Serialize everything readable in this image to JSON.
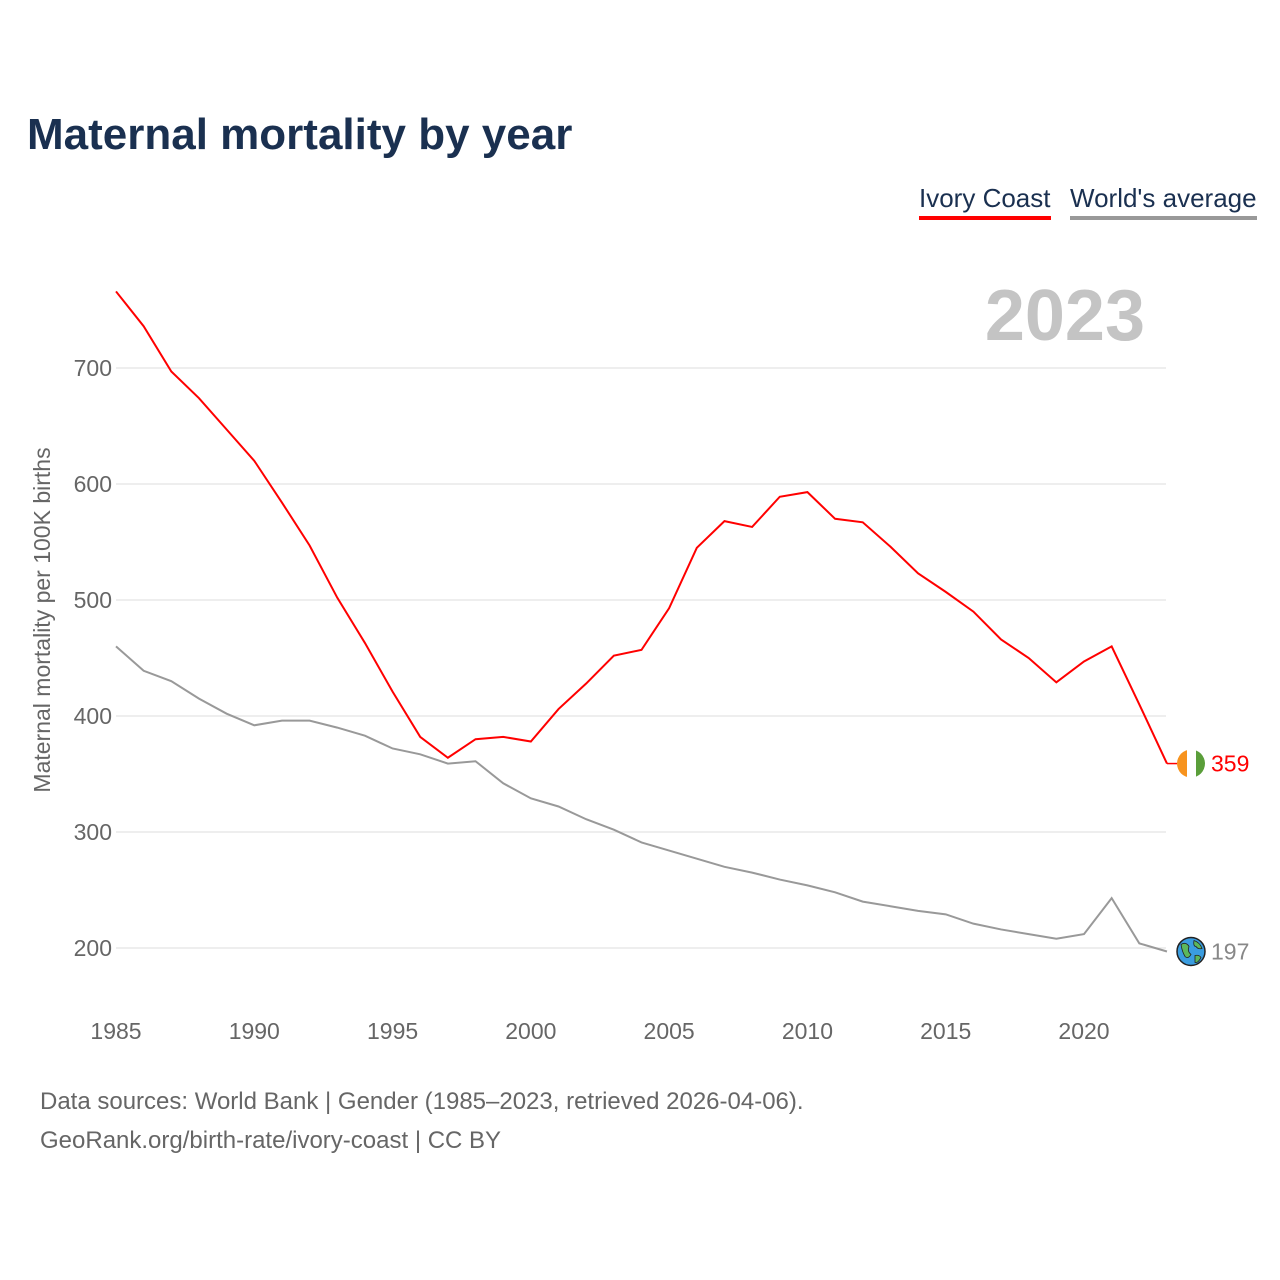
{
  "title": "Maternal mortality by year",
  "legend": {
    "ivory_coast": "Ivory Coast",
    "world": "World's average"
  },
  "year_label": "2023",
  "footer": {
    "line1": "Data sources: World Bank | Gender (1985–2023, retrieved 2026-04-06).",
    "line2": "GeoRank.org/birth-rate/ivory-coast | CC BY"
  },
  "chart_data": {
    "type": "line",
    "title": "Maternal mortality by year",
    "xlabel": "",
    "ylabel": "Maternal mortality per 100K births",
    "xlim": [
      1985,
      2023
    ],
    "ylim": [
      150,
      780
    ],
    "xticks": [
      1985,
      1990,
      1995,
      2000,
      2005,
      2010,
      2015,
      2020
    ],
    "yticks": [
      200,
      300,
      400,
      500,
      600,
      700
    ],
    "grid": true,
    "legend_position": "top-right",
    "x": [
      1985,
      1986,
      1987,
      1988,
      1989,
      1990,
      1991,
      1992,
      1993,
      1994,
      1995,
      1996,
      1997,
      1998,
      1999,
      2000,
      2001,
      2002,
      2003,
      2004,
      2005,
      2006,
      2007,
      2008,
      2009,
      2010,
      2011,
      2012,
      2013,
      2014,
      2015,
      2016,
      2017,
      2018,
      2019,
      2020,
      2021,
      2022,
      2023
    ],
    "series": [
      {
        "name": "Ivory Coast",
        "color": "#ff0000",
        "end_label": "359",
        "values": [
          766,
          736,
          697,
          674,
          647,
          620,
          584,
          547,
          502,
          463,
          421,
          382,
          364,
          380,
          382,
          378,
          406,
          428,
          452,
          457,
          493,
          545,
          568,
          563,
          589,
          593,
          570,
          567,
          546,
          523,
          507,
          490,
          466,
          450,
          429,
          447,
          460,
          410,
          359
        ]
      },
      {
        "name": "World's average",
        "color": "#999999",
        "end_label": "197",
        "values": [
          460,
          439,
          430,
          415,
          402,
          392,
          396,
          396,
          390,
          383,
          372,
          367,
          359,
          361,
          342,
          329,
          322,
          311,
          302,
          291,
          284,
          277,
          270,
          265,
          259,
          254,
          248,
          240,
          236,
          232,
          229,
          221,
          216,
          212,
          208,
          212,
          243,
          204,
          197
        ]
      }
    ]
  }
}
